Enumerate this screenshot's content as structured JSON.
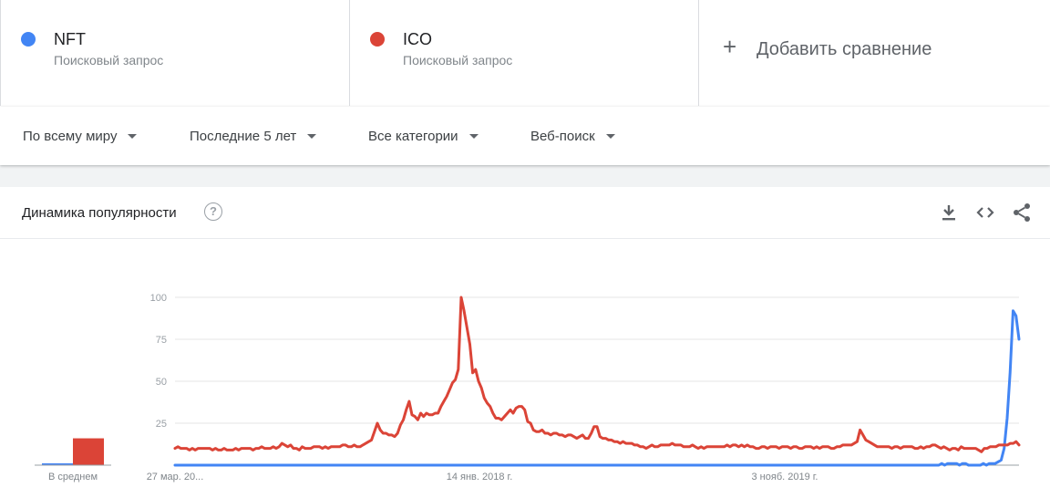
{
  "terms": [
    {
      "name": "NFT",
      "subtitle": "Поисковый запрос",
      "color": "#4285f4"
    },
    {
      "name": "ICO",
      "subtitle": "Поисковый запрос",
      "color": "#db4437"
    }
  ],
  "add_comparison": {
    "label": "Добавить сравнение",
    "icon": "plus-icon"
  },
  "filters": {
    "region": "По всему миру",
    "period": "Последние 5 лет",
    "category": "Все категории",
    "search_type": "Веб-поиск"
  },
  "card": {
    "title": "Динамика популярности",
    "icons": [
      "help-icon",
      "download-icon",
      "embed-icon",
      "share-icon"
    ]
  },
  "chart_data": {
    "type": "line",
    "ylim": [
      0,
      100
    ],
    "yticks": [
      "100",
      "75",
      "50",
      "25"
    ],
    "x_tick_labels": [
      "27 мар. 20...",
      "14 янв. 2018 г.",
      "3 нояб. 2019 г."
    ],
    "grid": true,
    "legend": "none",
    "average_label": "В среднем",
    "averages": [
      {
        "name": "NFT",
        "value": 1
      },
      {
        "name": "ICO",
        "value": 16
      }
    ],
    "series": [
      {
        "name": "NFT",
        "color": "#4285f4",
        "values": [
          0,
          0,
          0,
          0,
          0,
          0,
          0,
          0,
          0,
          0,
          0,
          0,
          0,
          0,
          0,
          0,
          0,
          0,
          0,
          0,
          0,
          0,
          0,
          0,
          0,
          0,
          0,
          0,
          0,
          0,
          0,
          0,
          0,
          0,
          0,
          0,
          0,
          0,
          0,
          0,
          0,
          0,
          0,
          0,
          0,
          0,
          0,
          0,
          0,
          0,
          0,
          0,
          0,
          0,
          0,
          0,
          0,
          0,
          0,
          0,
          0,
          0,
          0,
          0,
          0,
          0,
          0,
          0,
          0,
          0,
          0,
          0,
          0,
          0,
          0,
          0,
          0,
          0,
          0,
          0,
          0,
          0,
          0,
          0,
          0,
          0,
          0,
          0,
          0,
          0,
          0,
          0,
          0,
          0,
          0,
          0,
          0,
          0,
          0,
          0,
          0,
          0,
          0,
          0,
          0,
          0,
          0,
          0,
          0,
          0,
          0,
          0,
          0,
          0,
          0,
          0,
          0,
          0,
          0,
          0,
          0,
          0,
          0,
          0,
          0,
          0,
          0,
          0,
          0,
          0,
          0,
          0,
          0,
          0,
          0,
          0,
          0,
          0,
          0,
          0,
          0,
          0,
          0,
          0,
          0,
          0,
          0,
          0,
          0,
          0,
          0,
          0,
          0,
          0,
          0,
          0,
          0,
          0,
          0,
          0,
          0,
          0,
          0,
          0,
          0,
          0,
          0,
          0,
          0,
          0,
          0,
          0,
          0,
          0,
          0,
          0,
          0,
          0,
          0,
          0,
          0,
          0,
          0,
          0,
          0,
          0,
          0,
          0,
          0,
          0,
          0,
          0,
          0,
          0,
          0,
          0,
          0,
          0,
          0,
          0,
          0,
          0,
          0,
          0,
          0,
          0,
          0,
          0,
          0,
          0,
          0,
          0,
          0,
          0,
          0,
          0,
          0,
          0,
          0,
          0,
          0,
          0,
          0,
          0,
          0,
          0,
          0,
          0,
          0,
          0,
          0,
          0,
          0,
          0,
          0,
          0,
          0,
          0,
          0,
          0,
          0,
          0,
          0,
          0,
          0,
          0,
          0,
          0,
          0,
          0,
          0,
          0,
          0,
          0,
          0,
          0,
          0,
          0,
          1,
          0,
          1,
          1,
          1,
          1,
          0,
          1,
          1,
          0,
          0,
          0,
          0,
          0,
          1,
          0,
          1,
          1,
          1,
          2,
          3,
          10,
          28,
          55,
          92,
          89,
          75
        ]
      },
      {
        "name": "ICO",
        "color": "#db4437",
        "values": [
          10,
          11,
          10,
          10,
          10,
          9,
          10,
          9,
          10,
          10,
          10,
          10,
          10,
          9,
          10,
          9,
          9,
          10,
          9,
          9,
          9,
          10,
          9,
          10,
          10,
          10,
          10,
          9,
          10,
          10,
          11,
          10,
          10,
          10,
          11,
          10,
          11,
          13,
          12,
          11,
          12,
          10,
          10,
          9,
          11,
          10,
          10,
          10,
          11,
          11,
          11,
          10,
          11,
          10,
          11,
          11,
          11,
          11,
          12,
          12,
          11,
          11,
          12,
          11,
          11,
          12,
          13,
          14,
          15,
          20,
          25,
          21,
          19,
          19,
          18,
          18,
          17,
          19,
          24,
          27,
          33,
          38,
          30,
          29,
          27,
          31,
          29,
          31,
          30,
          30,
          31,
          31,
          35,
          38,
          41,
          45,
          49,
          51,
          57,
          100,
          92,
          82,
          72,
          55,
          57,
          50,
          46,
          40,
          37,
          35,
          31,
          28,
          28,
          27,
          29,
          31,
          33,
          31,
          34,
          35,
          35,
          33,
          26,
          25,
          21,
          20,
          20,
          21,
          19,
          19,
          18,
          19,
          19,
          18,
          18,
          17,
          18,
          18,
          17,
          16,
          17,
          18,
          16,
          16,
          19,
          23,
          23,
          17,
          16,
          16,
          15,
          15,
          14,
          14,
          13,
          14,
          13,
          13,
          13,
          12,
          12,
          11,
          11,
          10,
          11,
          12,
          11,
          11,
          12,
          12,
          12,
          12,
          13,
          12,
          12,
          12,
          11,
          11,
          11,
          12,
          11,
          10,
          11,
          10,
          11,
          11,
          11,
          11,
          11,
          11,
          11,
          12,
          11,
          12,
          12,
          11,
          12,
          11,
          12,
          11,
          11,
          10,
          10,
          11,
          11,
          10,
          11,
          11,
          11,
          10,
          11,
          11,
          11,
          10,
          11,
          11,
          10,
          10,
          11,
          11,
          11,
          10,
          11,
          10,
          11,
          11,
          11,
          10,
          10,
          11,
          11,
          12,
          12,
          12,
          12,
          13,
          14,
          21,
          18,
          15,
          14,
          13,
          12,
          11,
          11,
          11,
          11,
          11,
          10,
          11,
          11,
          10,
          11,
          11,
          11,
          11,
          10,
          10,
          11,
          10,
          11,
          11,
          12,
          12,
          11,
          10,
          11,
          10,
          9,
          10,
          10,
          9,
          11,
          10,
          10,
          10,
          10,
          10,
          9,
          8,
          10,
          10,
          11,
          11,
          11,
          12,
          12,
          12,
          12,
          13,
          13,
          14,
          12
        ]
      }
    ]
  }
}
